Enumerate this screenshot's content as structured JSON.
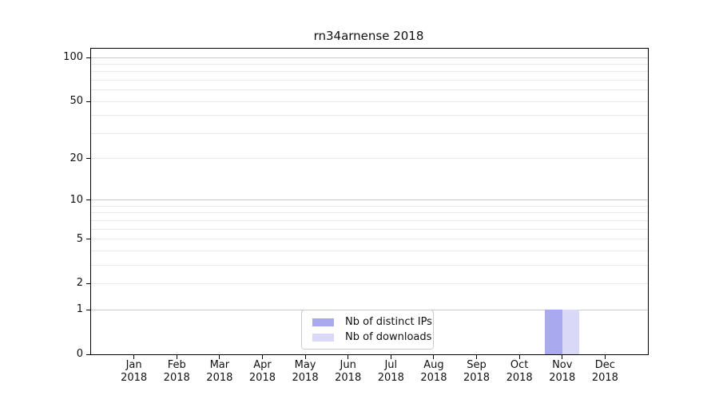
{
  "chart_data": {
    "type": "bar",
    "title": "rn34arnense 2018",
    "categories": [
      "Jan 2018",
      "Feb 2018",
      "Mar 2018",
      "Apr 2018",
      "May 2018",
      "Jun 2018",
      "Jul 2018",
      "Aug 2018",
      "Sep 2018",
      "Oct 2018",
      "Nov 2018",
      "Dec 2018"
    ],
    "series": [
      {
        "name": "Nb of distinct IPs",
        "color": "#a9a9ef",
        "values": [
          0,
          0,
          0,
          0,
          0,
          0,
          0,
          0,
          0,
          0,
          1,
          0
        ]
      },
      {
        "name": "Nb of downloads",
        "color": "#d9d9f7",
        "values": [
          0,
          0,
          0,
          0,
          0,
          0,
          0,
          0,
          0,
          0,
          1,
          0
        ]
      }
    ],
    "yscale": "log1p",
    "ylim": [
      0,
      113
    ],
    "yticks_labeled": [
      0,
      1,
      2,
      5,
      10,
      20,
      50,
      100
    ],
    "yticks_major_grid": [
      1,
      10,
      100
    ],
    "yticks_minor_grid": [
      2,
      3,
      4,
      5,
      6,
      7,
      8,
      9,
      20,
      30,
      40,
      50,
      60,
      70,
      80,
      90
    ],
    "grid": true,
    "legend_position": "lower center",
    "colors": {
      "grid_major": "#c9c9c9",
      "grid_minor": "#e9e9e9",
      "axis": "#000000",
      "background": "#ffffff"
    }
  }
}
